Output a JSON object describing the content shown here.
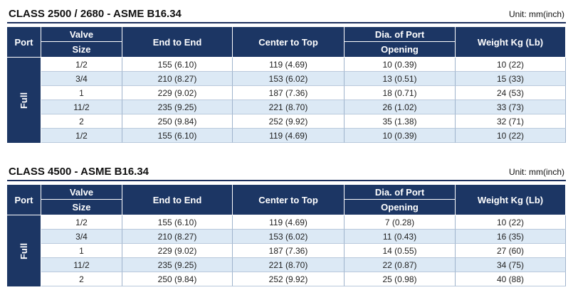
{
  "tables": [
    {
      "title": "CLASS 2500 / 2680 - ASME B16.34",
      "unit": "Unit: mm(inch)",
      "headers": [
        "Port",
        [
          "Valve",
          "Size"
        ],
        "End to End",
        "Center to Top",
        [
          "Dia. of Port",
          "Opening"
        ],
        "Weight Kg (Lb)"
      ],
      "port": "Full",
      "rows": [
        [
          "1/2",
          "155 (6.10)",
          "119 (4.69)",
          "10 (0.39)",
          "10 (22)"
        ],
        [
          "3/4",
          "210 (8.27)",
          "153 (6.02)",
          "13 (0.51)",
          "15 (33)"
        ],
        [
          "1",
          "229 (9.02)",
          "187 (7.36)",
          "18 (0.71)",
          "24 (53)"
        ],
        [
          "11/2",
          "235 (9.25)",
          "221 (8.70)",
          "26 (1.02)",
          "33 (73)"
        ],
        [
          "2",
          "250 (9.84)",
          "252 (9.92)",
          "35 (1.38)",
          "32 (71)"
        ],
        [
          "1/2",
          "155 (6.10)",
          "119 (4.69)",
          "10 (0.39)",
          "10 (22)"
        ]
      ]
    },
    {
      "title": "CLASS 4500 - ASME B16.34",
      "unit": "Unit: mm(inch)",
      "headers": [
        "Port",
        [
          "Valve",
          "Size"
        ],
        "End to End",
        "Center to Top",
        [
          "Dia. of Port",
          "Opening"
        ],
        "Weight Kg (Lb)"
      ],
      "port": "Full",
      "rows": [
        [
          "1/2",
          "155 (6.10)",
          "119 (4.69)",
          "7 (0.28)",
          "10 (22)"
        ],
        [
          "3/4",
          "210 (8.27)",
          "153 (6.02)",
          "11 (0.43)",
          "16 (35)"
        ],
        [
          "1",
          "229 (9.02)",
          "187 (7.36)",
          "14 (0.55)",
          "27 (60)"
        ],
        [
          "11/2",
          "235 (9.25)",
          "221 (8.70)",
          "22 (0.87)",
          "34 (75)"
        ],
        [
          "2",
          "250 (9.84)",
          "252 (9.92)",
          "25 (0.98)",
          "40 (88)"
        ]
      ]
    }
  ]
}
